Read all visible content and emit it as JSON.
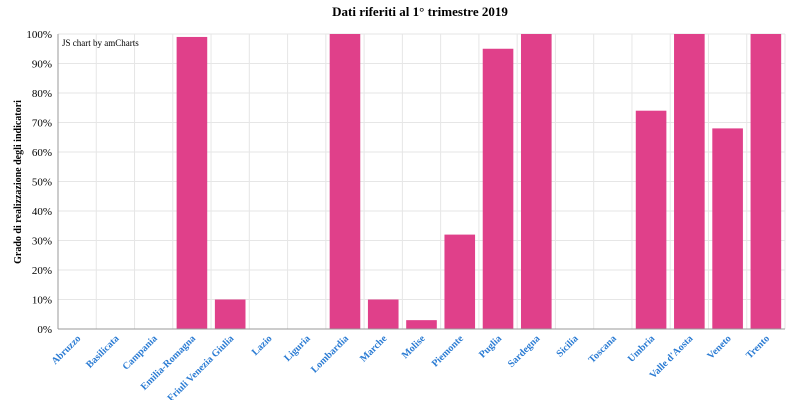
{
  "chart_data": {
    "type": "bar",
    "title": "Dati riferiti al 1° trimestre 2019",
    "xlabel": "",
    "ylabel": "Grado di realizzazione degli indicatori",
    "categories": [
      "Abruzzo",
      "Basilicata",
      "Campania",
      "Emilia-Romagna",
      "Friuli Venezia Giulia",
      "Lazio",
      "Liguria",
      "Lombardia",
      "Marche",
      "Molise",
      "Piemonte",
      "Puglia",
      "Sardegna",
      "Sicilia",
      "Toscana",
      "Umbria",
      "Valle d'Aosta",
      "Veneto",
      "Trento"
    ],
    "values": [
      0,
      0,
      0,
      99,
      10,
      0,
      0,
      100,
      10,
      3,
      32,
      95,
      100,
      0,
      0,
      74,
      100,
      68,
      100
    ],
    "ylim": [
      0,
      100
    ],
    "yticks": [
      "0%",
      "10%",
      "20%",
      "30%",
      "40%",
      "50%",
      "60%",
      "70%",
      "80%",
      "90%",
      "100%"
    ],
    "grid": true,
    "bar_color": "#e0408a",
    "tick_label_color": "#2a7bd3"
  },
  "credit": "JS chart by amCharts"
}
